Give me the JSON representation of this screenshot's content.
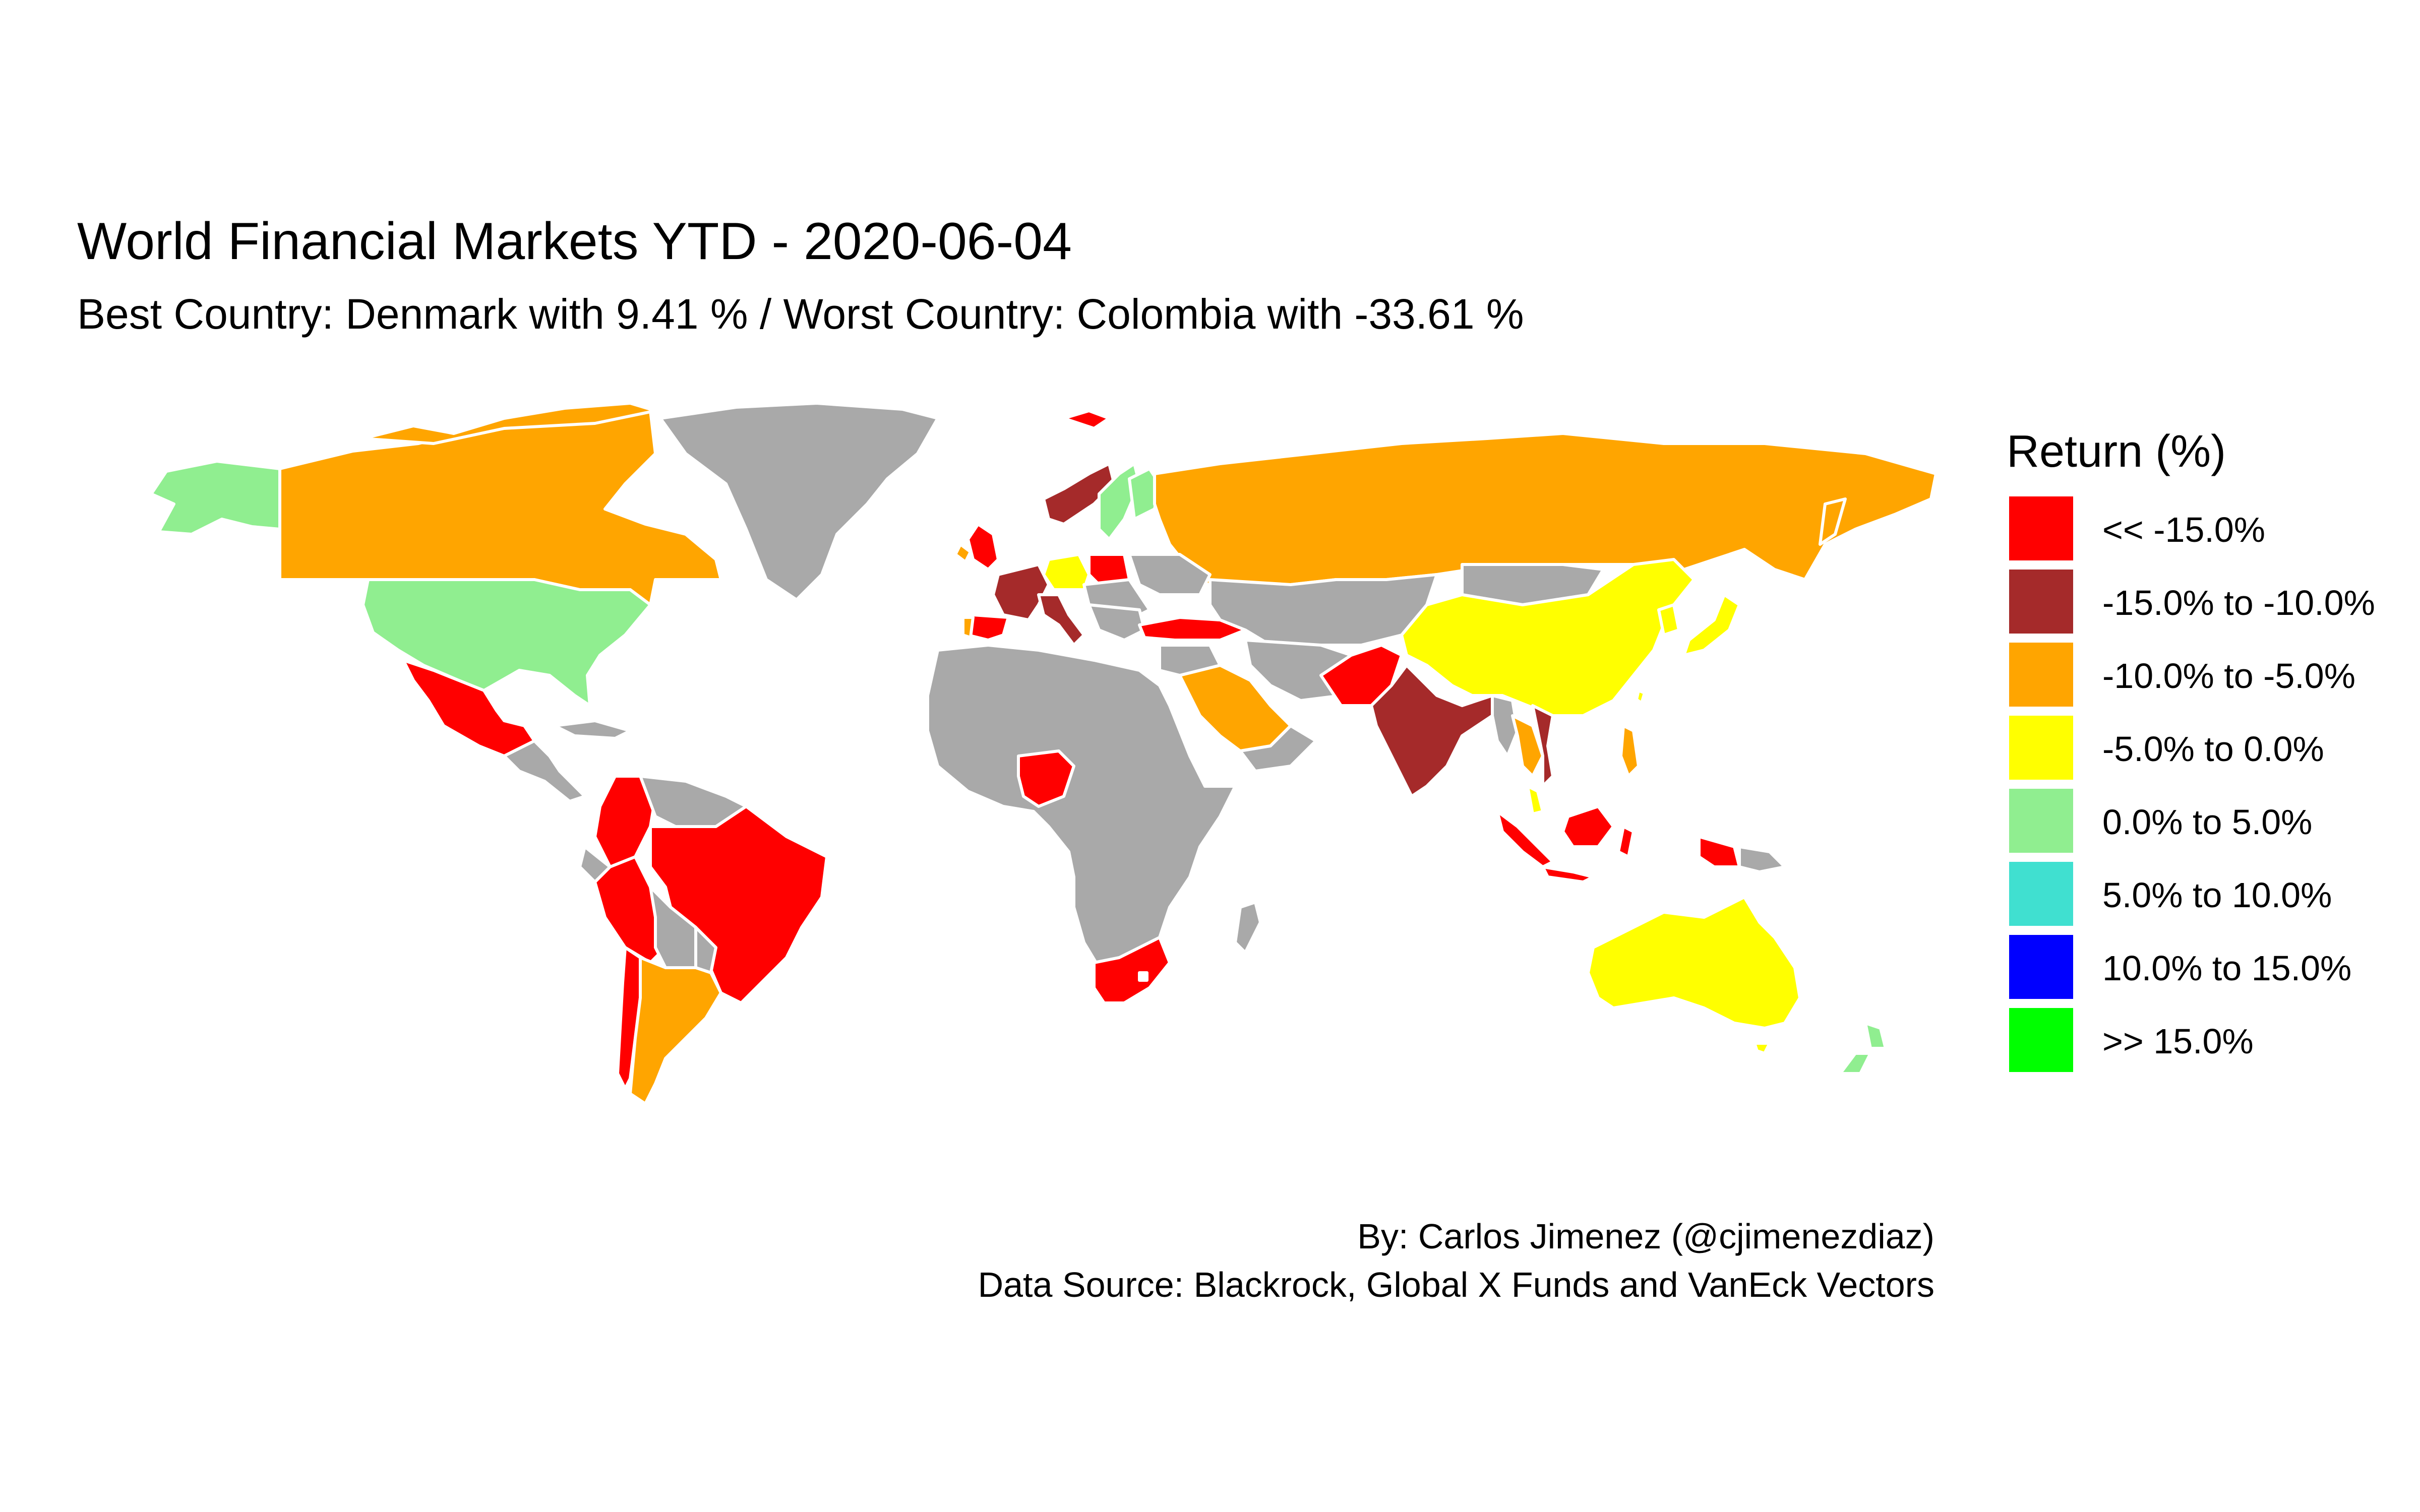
{
  "title": "World Financial Markets YTD - 2020-06-04",
  "subtitle": "Best Country:  Denmark  with  9.41 % / Worst Country:  Colombia  with  -33.61 %",
  "legend": {
    "title": "Return (%)",
    "items": [
      {
        "label": "<< -15.0%",
        "color": "#ff0000"
      },
      {
        "label": "-15.0% to -10.0%",
        "color": "#a52a2a"
      },
      {
        "label": "-10.0% to -5.0%",
        "color": "#ffa500"
      },
      {
        "label": "-5.0% to 0.0%",
        "color": "#ffff00"
      },
      {
        "label": "0.0% to 5.0%",
        "color": "#90ee90"
      },
      {
        "label": "5.0% to 10.0%",
        "color": "#40e0d0"
      },
      {
        "label": "10.0% to 15.0%",
        "color": "#0000ff"
      },
      {
        "label": ">> 15.0%",
        "color": "#00ff00"
      }
    ]
  },
  "no_data_color": "#a9a9a9",
  "caption": {
    "line1": "By: Carlos Jimenez (@cjimenezdiaz)",
    "line2": "Data Source: Blackrock, Global X Funds and VanEck Vectors"
  }
}
